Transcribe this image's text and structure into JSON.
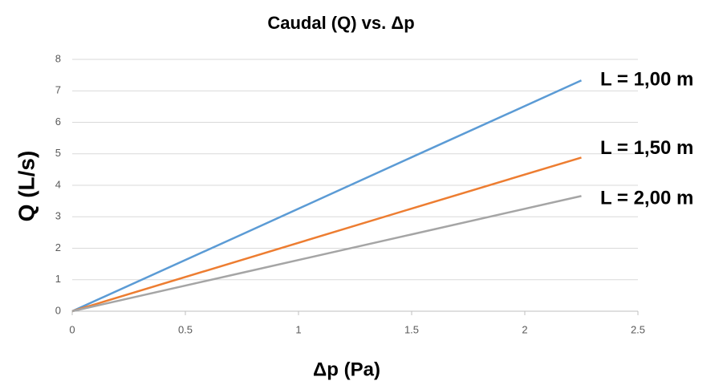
{
  "chart_data": {
    "type": "line",
    "title": "Caudal (Q) vs. Δp",
    "xlabel": "Δp (Pa)",
    "ylabel": "Q (L/s)",
    "x": [
      0,
      0.75,
      1.5,
      2.25
    ],
    "series": [
      {
        "name": "L = 1,00 m",
        "color": "#5b9bd5",
        "values": [
          0,
          2.44,
          4.89,
          7.33
        ]
      },
      {
        "name": "L = 1,50 m",
        "color": "#ed7d31",
        "values": [
          0,
          1.63,
          3.26,
          4.88
        ]
      },
      {
        "name": "L = 2,00 m",
        "color": "#a5a5a5",
        "values": [
          0,
          1.22,
          2.44,
          3.66
        ]
      }
    ],
    "xlim": [
      0,
      2.5
    ],
    "xticks": [
      0,
      0.5,
      1,
      1.5,
      2,
      2.5
    ],
    "ylim": [
      0,
      8
    ],
    "yticks": [
      0,
      1,
      2,
      3,
      4,
      5,
      6,
      7,
      8
    ],
    "grid": true
  }
}
